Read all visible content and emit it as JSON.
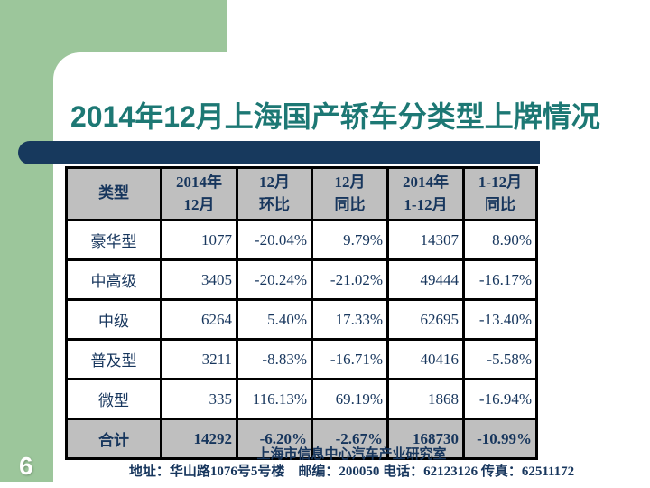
{
  "slide": {
    "title": "2014年12月上海国产轿车分类型上牌情况",
    "page_number": "6"
  },
  "table": {
    "columns": [
      "类型",
      "2014年\n12月",
      "12月\n环比",
      "12月\n同比",
      "2014年\n1-12月",
      "1-12月\n同比"
    ],
    "rows": [
      {
        "cells": [
          "豪华型",
          "1077",
          "-20.04%",
          "9.79%",
          "14307",
          "8.90%"
        ],
        "is_total": false
      },
      {
        "cells": [
          "中高级",
          "3405",
          "-20.24%",
          "-21.02%",
          "49444",
          "-16.17%"
        ],
        "is_total": false
      },
      {
        "cells": [
          "中级",
          "6264",
          "5.40%",
          "17.33%",
          "62695",
          "-13.40%"
        ],
        "is_total": false
      },
      {
        "cells": [
          "普及型",
          "3211",
          "-8.83%",
          "-16.71%",
          "40416",
          "-5.58%"
        ],
        "is_total": false
      },
      {
        "cells": [
          "微型",
          "335",
          "116.13%",
          "69.19%",
          "1868",
          "-16.94%"
        ],
        "is_total": false
      },
      {
        "cells": [
          "合计",
          "14292",
          "-6.20%",
          "-2.67%",
          "168730",
          "-10.99%"
        ],
        "is_total": true
      }
    ]
  },
  "footer": {
    "org": "上海市信息中心汽车产业研究室",
    "contact": "地址：华山路1076号5号楼　邮编：200050 电话：62123126 传真：62511172"
  },
  "colors": {
    "accent_green": "#9cc69b",
    "bar_navy": "#17395d",
    "title_teal": "#1d7874",
    "table_text_navy": "#17365d",
    "header_gray": "#bfbfbf"
  }
}
